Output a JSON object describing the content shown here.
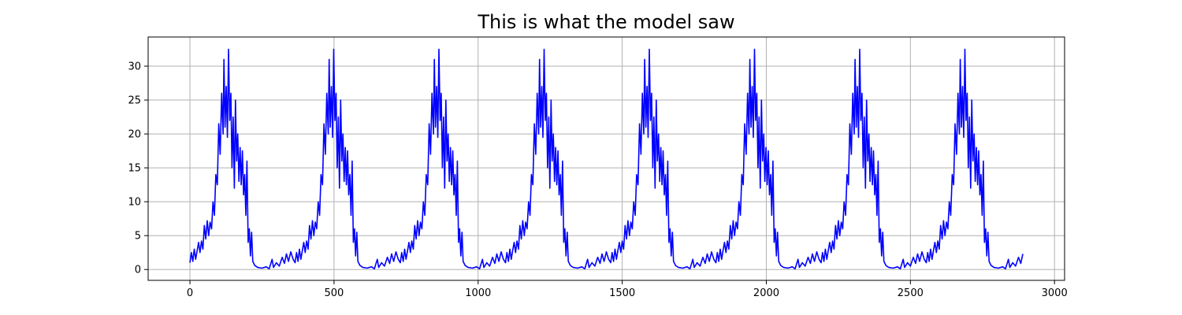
{
  "chart_data": {
    "type": "line",
    "title": "This is what the model saw",
    "xlabel": "",
    "ylabel": "",
    "xlim": [
      -145,
      3035
    ],
    "ylim": [
      -1.6,
      34.3
    ],
    "xticks": [
      0,
      500,
      1000,
      1500,
      2000,
      2500,
      3000
    ],
    "xtick_labels": [
      "0",
      "500",
      "1000",
      "1500",
      "2000",
      "2500",
      "3000"
    ],
    "yticks": [
      0,
      5,
      10,
      15,
      20,
      25,
      30
    ],
    "ytick_labels": [
      "0",
      "5",
      "10",
      "15",
      "20",
      "25",
      "30"
    ],
    "grid": true,
    "legend": "none",
    "series": [
      {
        "color": "#0000ff",
        "period": 365,
        "cycles": 8,
        "x_end": 2890,
        "cycle_profile": [
          {
            "x": 0,
            "y": 1.0
          },
          {
            "x": 5,
            "y": 2.5
          },
          {
            "x": 10,
            "y": 1.2
          },
          {
            "x": 15,
            "y": 3.0
          },
          {
            "x": 20,
            "y": 1.5
          },
          {
            "x": 25,
            "y": 2.8
          },
          {
            "x": 30,
            "y": 4.0
          },
          {
            "x": 35,
            "y": 2.5
          },
          {
            "x": 40,
            "y": 4.2
          },
          {
            "x": 45,
            "y": 3.0
          },
          {
            "x": 50,
            "y": 6.5
          },
          {
            "x": 55,
            "y": 4.5
          },
          {
            "x": 60,
            "y": 7.2
          },
          {
            "x": 65,
            "y": 5.0
          },
          {
            "x": 70,
            "y": 7.0
          },
          {
            "x": 75,
            "y": 6.0
          },
          {
            "x": 80,
            "y": 10.0
          },
          {
            "x": 85,
            "y": 8.0
          },
          {
            "x": 90,
            "y": 14.0
          },
          {
            "x": 95,
            "y": 12.5
          },
          {
            "x": 100,
            "y": 21.5
          },
          {
            "x": 105,
            "y": 17.0
          },
          {
            "x": 110,
            "y": 26.0
          },
          {
            "x": 115,
            "y": 20.0
          },
          {
            "x": 118,
            "y": 31.0
          },
          {
            "x": 122,
            "y": 21.0
          },
          {
            "x": 126,
            "y": 27.0
          },
          {
            "x": 130,
            "y": 19.5
          },
          {
            "x": 134,
            "y": 32.5
          },
          {
            "x": 138,
            "y": 22.0
          },
          {
            "x": 142,
            "y": 26.0
          },
          {
            "x": 146,
            "y": 15.0
          },
          {
            "x": 150,
            "y": 22.5
          },
          {
            "x": 154,
            "y": 12.0
          },
          {
            "x": 158,
            "y": 25.0
          },
          {
            "x": 162,
            "y": 16.0
          },
          {
            "x": 166,
            "y": 20.0
          },
          {
            "x": 170,
            "y": 13.0
          },
          {
            "x": 174,
            "y": 18.0
          },
          {
            "x": 178,
            "y": 12.5
          },
          {
            "x": 182,
            "y": 17.5
          },
          {
            "x": 186,
            "y": 11.0
          },
          {
            "x": 190,
            "y": 14.0
          },
          {
            "x": 194,
            "y": 8.0
          },
          {
            "x": 198,
            "y": 16.0
          },
          {
            "x": 202,
            "y": 4.0
          },
          {
            "x": 206,
            "y": 6.0
          },
          {
            "x": 210,
            "y": 2.0
          },
          {
            "x": 214,
            "y": 5.5
          },
          {
            "x": 218,
            "y": 1.2
          },
          {
            "x": 225,
            "y": 0.6
          },
          {
            "x": 235,
            "y": 0.3
          },
          {
            "x": 250,
            "y": 0.2
          },
          {
            "x": 265,
            "y": 0.4
          },
          {
            "x": 275,
            "y": 0.1
          },
          {
            "x": 285,
            "y": 1.5
          },
          {
            "x": 290,
            "y": 0.3
          },
          {
            "x": 300,
            "y": 1.0
          },
          {
            "x": 310,
            "y": 0.5
          },
          {
            "x": 320,
            "y": 1.8
          },
          {
            "x": 328,
            "y": 0.9
          },
          {
            "x": 335,
            "y": 2.3
          },
          {
            "x": 342,
            "y": 1.2
          },
          {
            "x": 350,
            "y": 2.6
          },
          {
            "x": 358,
            "y": 1.5
          },
          {
            "x": 365,
            "y": 1.0
          }
        ]
      }
    ]
  }
}
